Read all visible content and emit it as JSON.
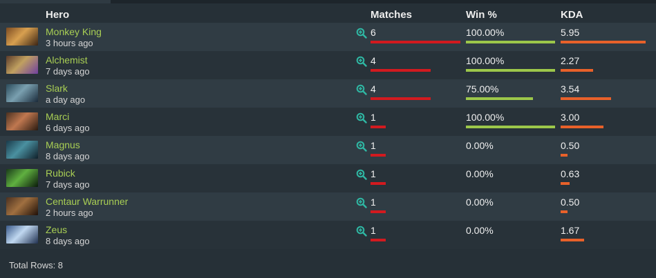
{
  "header": {
    "hero": "Hero",
    "matches": "Matches",
    "winrate": "Win %",
    "kda": "KDA"
  },
  "colors": {
    "hero_name": "#a9cf54",
    "matches_bar": "#d21a1f",
    "winrate_bar": "#9cc74a",
    "kda_bar": "#e8612a",
    "zoom_icon": "#2fb8a4"
  },
  "rows": [
    {
      "hero": "Monkey King",
      "time": "3 hours ago",
      "matches": "6",
      "matches_n": 6,
      "winrate": "100.00%",
      "winrate_n": 1.0,
      "kda": "5.95",
      "kda_n": 5.95,
      "icon": "monkey-king-portrait"
    },
    {
      "hero": "Alchemist",
      "time": "7 days ago",
      "matches": "4",
      "matches_n": 4,
      "winrate": "100.00%",
      "winrate_n": 1.0,
      "kda": "2.27",
      "kda_n": 2.27,
      "icon": "alchemist-portrait"
    },
    {
      "hero": "Slark",
      "time": "a day ago",
      "matches": "4",
      "matches_n": 4,
      "winrate": "75.00%",
      "winrate_n": 0.75,
      "kda": "3.54",
      "kda_n": 3.54,
      "icon": "slark-portrait"
    },
    {
      "hero": "Marci",
      "time": "6 days ago",
      "matches": "1",
      "matches_n": 1,
      "winrate": "100.00%",
      "winrate_n": 1.0,
      "kda": "3.00",
      "kda_n": 3.0,
      "icon": "marci-portrait"
    },
    {
      "hero": "Magnus",
      "time": "8 days ago",
      "matches": "1",
      "matches_n": 1,
      "winrate": "0.00%",
      "winrate_n": 0,
      "kda": "0.50",
      "kda_n": 0.5,
      "icon": "magnus-portrait"
    },
    {
      "hero": "Rubick",
      "time": "7 days ago",
      "matches": "1",
      "matches_n": 1,
      "winrate": "0.00%",
      "winrate_n": 0,
      "kda": "0.63",
      "kda_n": 0.63,
      "icon": "rubick-portrait"
    },
    {
      "hero": "Centaur Warrunner",
      "time": "2 hours ago",
      "matches": "1",
      "matches_n": 1,
      "winrate": "0.00%",
      "winrate_n": 0,
      "kda": "0.50",
      "kda_n": 0.5,
      "icon": "centaur-warrunner-portrait"
    },
    {
      "hero": "Zeus",
      "time": "8 days ago",
      "matches": "1",
      "matches_n": 1,
      "winrate": "0.00%",
      "winrate_n": 0,
      "kda": "1.67",
      "kda_n": 1.67,
      "icon": "zeus-portrait"
    }
  ],
  "footer": {
    "total_rows": "Total Rows: 8"
  }
}
